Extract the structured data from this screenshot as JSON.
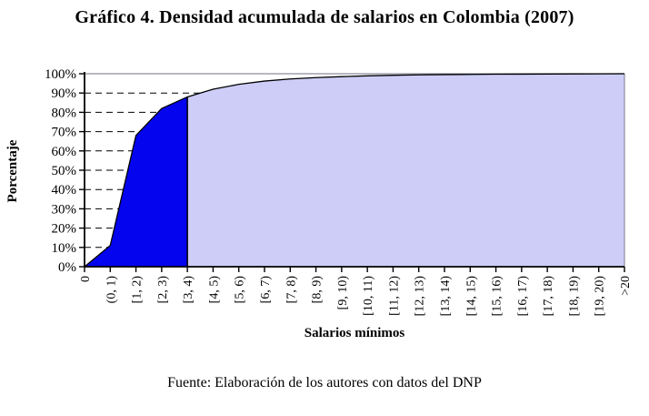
{
  "title": "Gráfico 4. Densidad acumulada de salarios en Colombia (2007)",
  "source": "Fuente: Elaboración de los autores con datos del DNP",
  "chart_data": {
    "type": "area",
    "title": "Gráfico 4. Densidad acumulada de salarios en Colombia (2007)",
    "xlabel": "Salarios mínimos",
    "ylabel": "Porcentaje",
    "categories": [
      "0",
      "(0, 1)",
      "[1, 2)",
      "[2, 3)",
      "[3, 4)",
      "[4, 5)",
      "[5, 6)",
      "[6, 7)",
      "[7, 8)",
      "[8, 9)",
      "[9, 10)",
      "[10, 11)",
      "[11, 12)",
      "[12, 13)",
      "[13, 14)",
      "[14, 15)",
      "[15, 16)",
      "[16, 17)",
      "[17, 18)",
      "[18, 19)",
      "[19, 20)",
      ">20"
    ],
    "values": [
      0,
      11,
      68,
      82,
      88,
      92,
      94.5,
      96.2,
      97.3,
      98,
      98.5,
      98.9,
      99.2,
      99.4,
      99.55,
      99.65,
      99.75,
      99.8,
      99.85,
      99.9,
      99.95,
      100
    ],
    "ylim": [
      0,
      100
    ],
    "ytick_step": 10,
    "ytick_labels": [
      "0%",
      "10%",
      "20%",
      "30%",
      "40%",
      "50%",
      "60%",
      "70%",
      "80%",
      "90%",
      "100%"
    ],
    "grid": "horizontal-dashed",
    "legend": "none",
    "split_index": 4,
    "split_category": "[3, 4)",
    "colors": {
      "dark_fill": "#0404ee",
      "light_fill": "#cdcdf8",
      "curve": "#000000",
      "axis": "#000000",
      "plot_border": "#8c8c9e"
    }
  }
}
